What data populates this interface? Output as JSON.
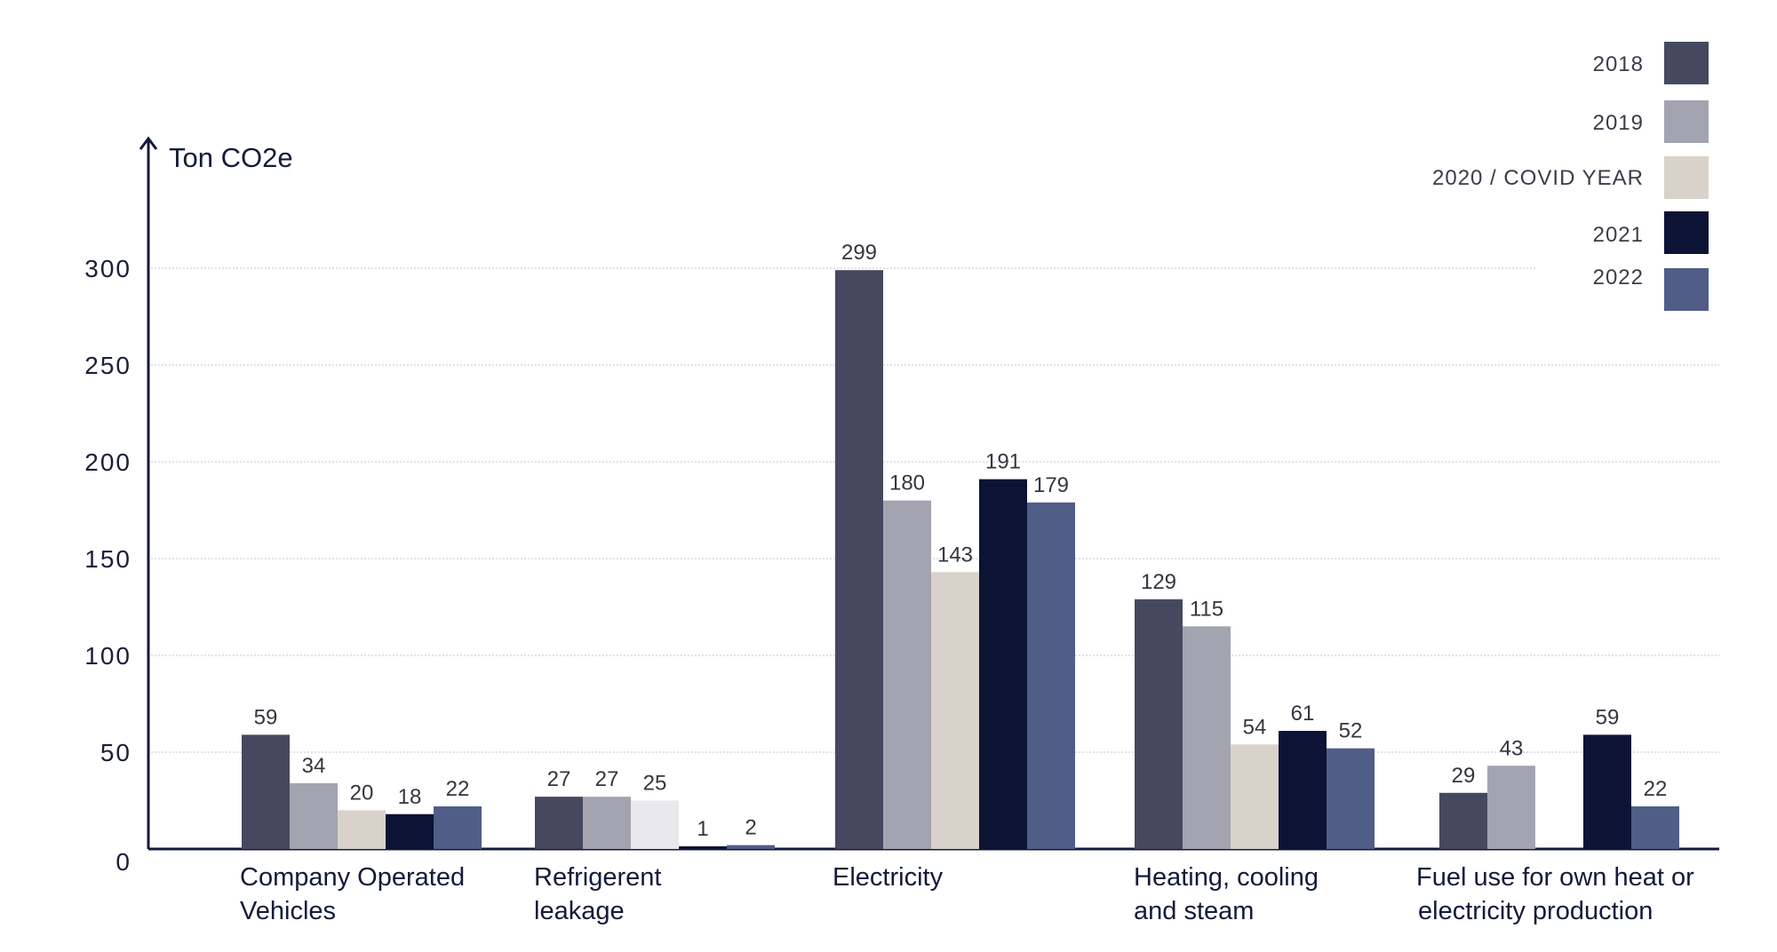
{
  "chart_data": {
    "type": "bar",
    "ylabel": "Ton CO2e",
    "ylim": [
      0,
      350
    ],
    "yticks": [
      0,
      50,
      100,
      150,
      200,
      250,
      300
    ],
    "grid": true,
    "legend_position": "top-right",
    "categories": [
      [
        "Company Operated",
        "Vehicles"
      ],
      [
        "Refrigerent",
        "leakage"
      ],
      [
        "Electricity"
      ],
      [
        "Heating, cooling",
        "and steam"
      ],
      [
        "Fuel use for own heat or",
        "electricity production"
      ]
    ],
    "series": [
      {
        "name": "2018",
        "color": "#45485f",
        "values": [
          59,
          27,
          299,
          129,
          29
        ]
      },
      {
        "name": "2019",
        "color": "#a3a4b0",
        "values": [
          34,
          27,
          180,
          115,
          43
        ]
      },
      {
        "name": "2020 / COVID YEAR",
        "color": "#d9d2ca",
        "values": [
          20,
          25,
          143,
          54,
          null
        ]
      },
      {
        "name": "2021",
        "color": "#0d1334",
        "values": [
          18,
          1,
          191,
          61,
          59
        ]
      },
      {
        "name": "2022",
        "color": "#4f5d87",
        "values": [
          22,
          2,
          179,
          52,
          22
        ]
      }
    ],
    "special_colors": {
      "refrigerent_2020": "#e9e9ec"
    }
  }
}
